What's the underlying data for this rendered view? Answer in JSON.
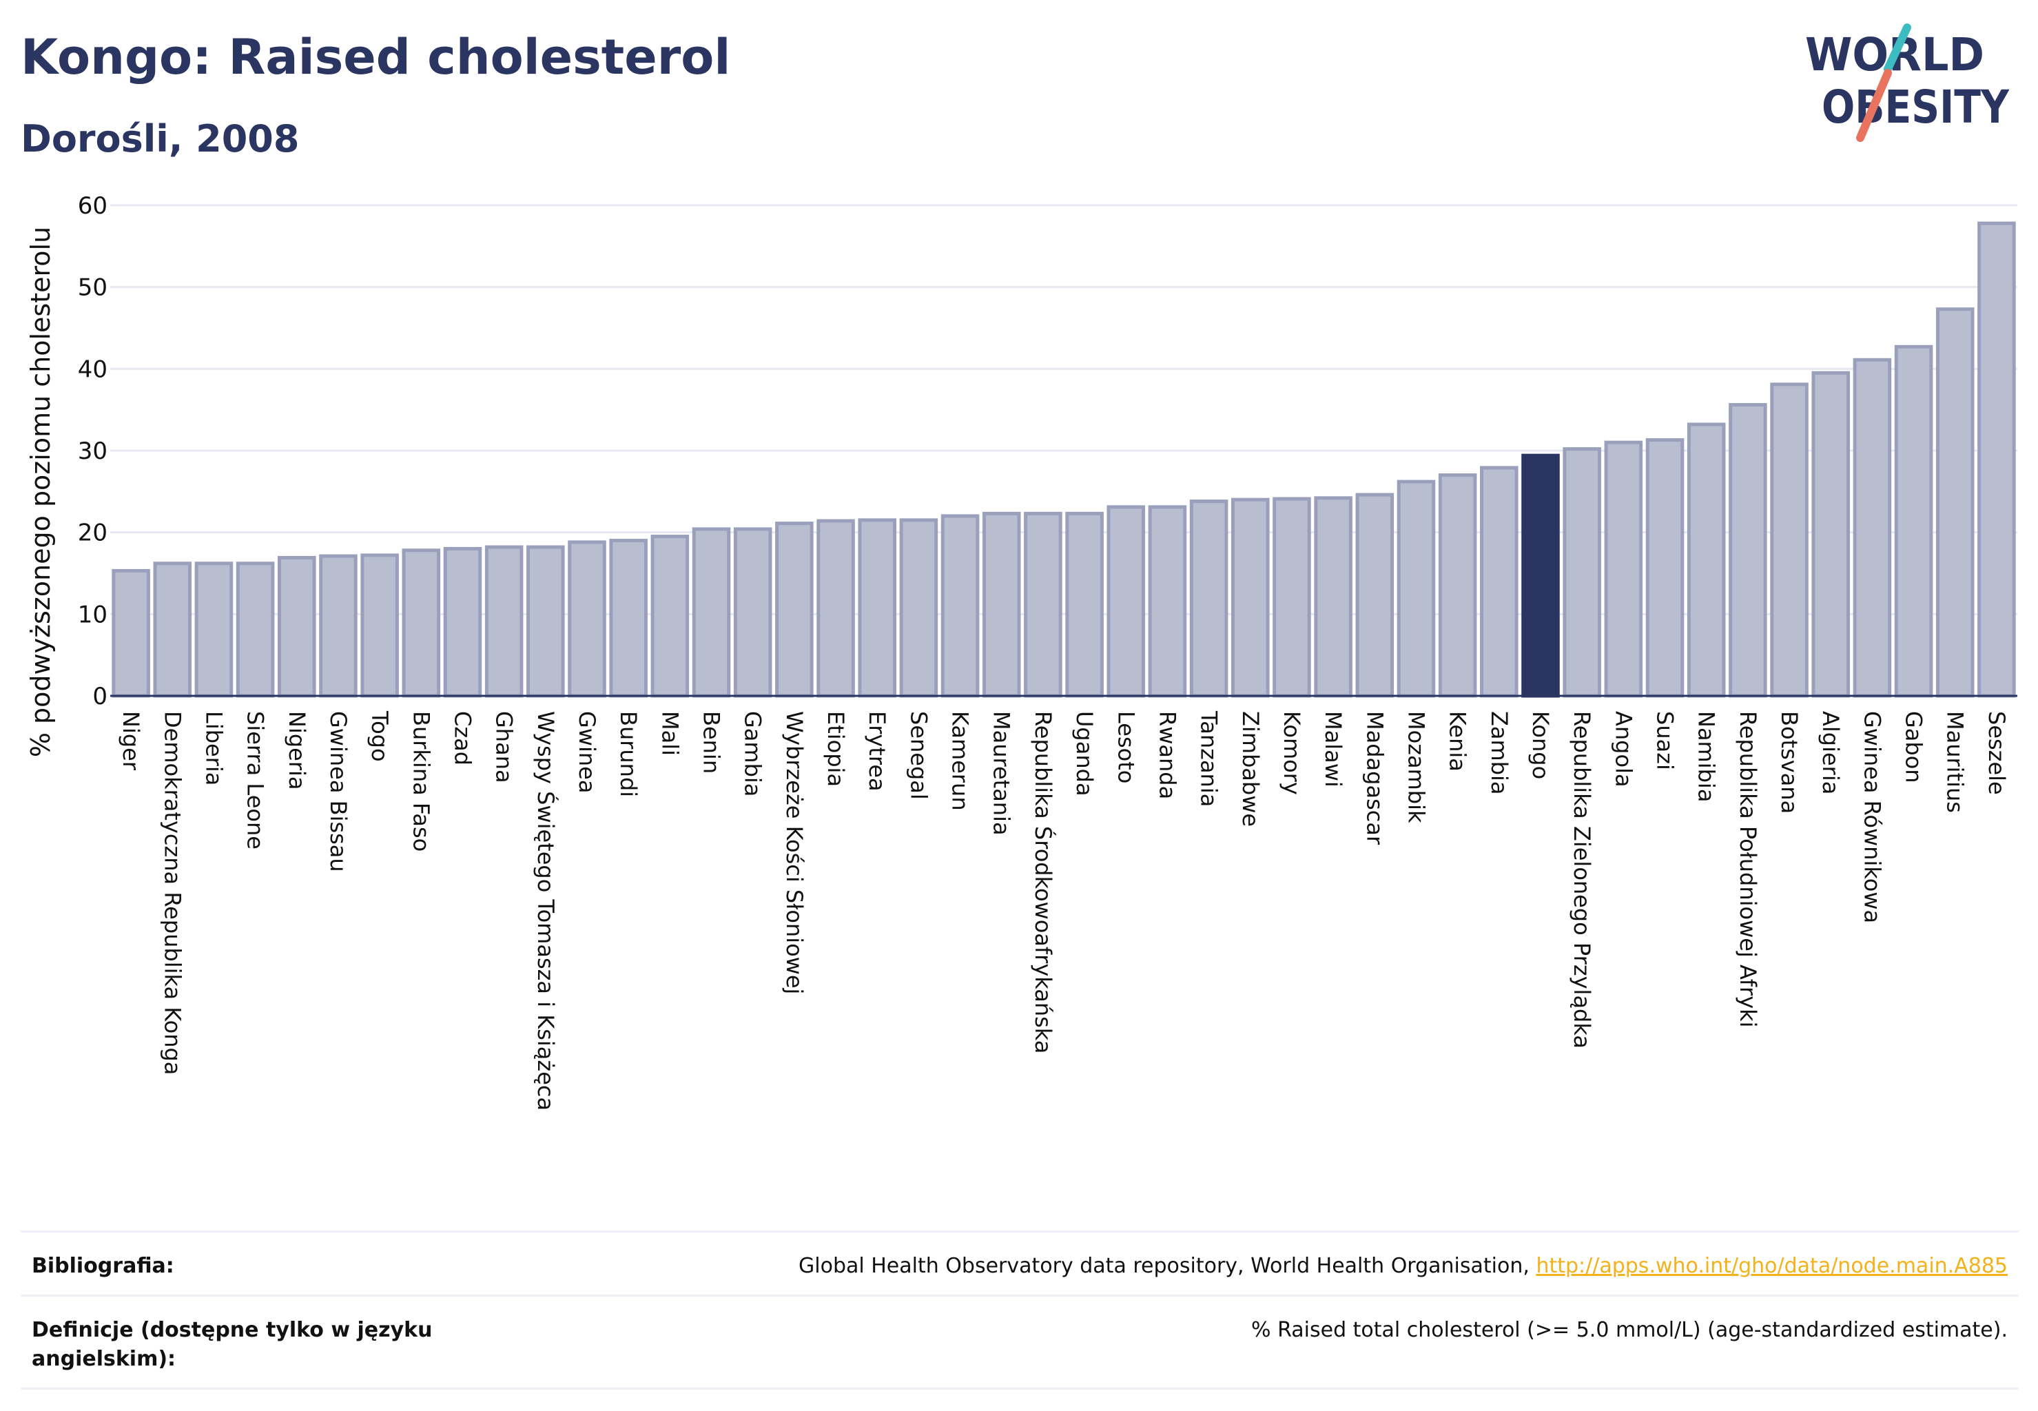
{
  "header": {
    "title": "Kongo: Raised cholesterol",
    "subtitle": "Dorośli, 2008",
    "logo_line1": "WORLD",
    "logo_line2": "OBESITY"
  },
  "colors": {
    "bar_fill": "#b9bdd0",
    "bar_stroke": "#9aa0bb",
    "highlight_fill": "#2a3561",
    "text": "#2a3561",
    "link": "#f2b21c",
    "logo_teal": "#3cbcc0",
    "logo_coral": "#e8735f"
  },
  "chart_data": {
    "type": "bar",
    "title": "Kongo: Raised cholesterol",
    "subtitle": "Dorośli, 2008",
    "xlabel": "",
    "ylabel": "% podwyższonego poziomu cholesterolu",
    "ylim": [
      0,
      60
    ],
    "yticks": [
      0,
      10,
      20,
      30,
      40,
      50,
      60
    ],
    "grid": true,
    "highlight": "Kongo",
    "categories": [
      "Niger",
      "Demokratyczna Republika Konga",
      "Liberia",
      "Sierra Leone",
      "Nigeria",
      "Gwinea Bissau",
      "Togo",
      "Burkina Faso",
      "Czad",
      "Ghana",
      "Wyspy Świętego Tomasza i Książęca",
      "Gwinea",
      "Burundi",
      "Mali",
      "Benin",
      "Gambia",
      "Wybrzeże Kości Słoniowej",
      "Etiopia",
      "Erytrea",
      "Senegal",
      "Kamerun",
      "Mauretania",
      "Republika Środkowoafrykańska",
      "Uganda",
      "Lesoto",
      "Rwanda",
      "Tanzania",
      "Zimbabwe",
      "Komory",
      "Malawi",
      "Madagascar",
      "Mozambik",
      "Kenia",
      "Zambia",
      "Kongo",
      "Republika Zielonego Przylądka",
      "Angola",
      "Suazi",
      "Namibia",
      "Republika Południowej Afryki",
      "Botsvana",
      "Algieria",
      "Gwinea Równikowa",
      "Gabon",
      "Mauritius",
      "Seszele"
    ],
    "values": [
      15.3,
      16.2,
      16.2,
      16.2,
      16.9,
      17.1,
      17.2,
      17.8,
      18.0,
      18.2,
      18.2,
      18.8,
      19.0,
      19.5,
      20.4,
      20.4,
      21.1,
      21.4,
      21.5,
      21.5,
      22.0,
      22.3,
      22.3,
      22.3,
      23.1,
      23.1,
      23.8,
      24.0,
      24.1,
      24.2,
      24.6,
      26.2,
      27.0,
      27.9,
      29.4,
      30.2,
      31.0,
      31.3,
      33.2,
      35.6,
      38.1,
      39.5,
      41.1,
      42.7,
      47.3,
      57.8
    ]
  },
  "references": {
    "source_label": "Bibliografia:",
    "source_text": "Global Health Observatory data repository, World Health Organisation, ",
    "source_link": "http://apps.who.int/gho/data/node.main.A885",
    "definition_label": "Definicje (dostępne tylko w języku angielskim):",
    "definition_text": "% Raised total cholesterol (>= 5.0 mmol/L) (age-standardized estimate)."
  }
}
